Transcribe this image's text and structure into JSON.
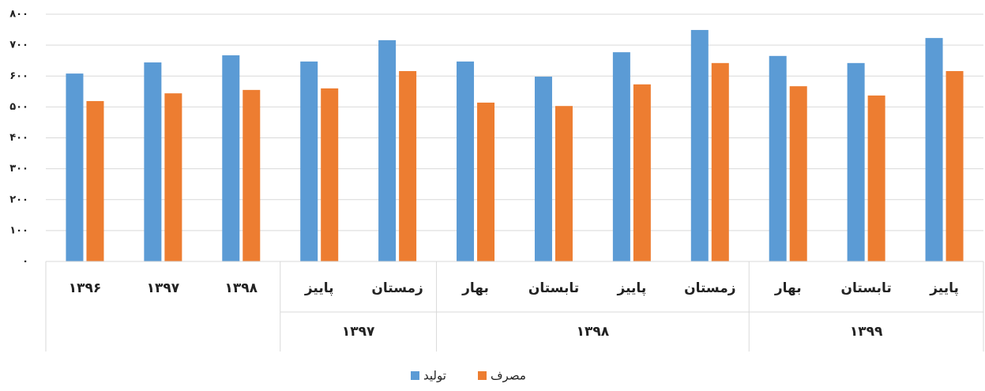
{
  "chart_data": {
    "type": "bar",
    "categories": [
      "۱۳۹۶",
      "۱۳۹۷",
      "۱۳۹۸",
      "پاییز",
      "زمستان",
      "بهار",
      "تابستان",
      "پاییز",
      "زمستان",
      "بهار",
      "تابستان",
      "پاییز"
    ],
    "category_groups": [
      null,
      null,
      null,
      "۱۳۹۷",
      "۱۳۹۷",
      "۱۳۹۸",
      "۱۳۹۸",
      "۱۳۹۸",
      "۱۳۹۸",
      "۱۳۹۹",
      "۱۳۹۹",
      "۱۳۹۹"
    ],
    "series": [
      {
        "name": "تولید",
        "color": "#5b9bd5",
        "values": [
          608,
          644,
          667,
          647,
          716,
          647,
          598,
          677,
          749,
          665,
          642,
          723
        ]
      },
      {
        "name": "مصرف",
        "color": "#ed7d31",
        "values": [
          519,
          544,
          555,
          560,
          616,
          514,
          503,
          573,
          642,
          567,
          537,
          616
        ]
      }
    ],
    "ylim": [
      0,
      800
    ],
    "yticks": [
      {
        "value": 0,
        "label": "۰"
      },
      {
        "value": 100,
        "label": "۱۰۰"
      },
      {
        "value": 200,
        "label": "۲۰۰"
      },
      {
        "value": 300,
        "label": "۳۰۰"
      },
      {
        "value": 400,
        "label": "۴۰۰"
      },
      {
        "value": 500,
        "label": "۵۰۰"
      },
      {
        "value": 600,
        "label": "۶۰۰"
      },
      {
        "value": 700,
        "label": "۷۰۰"
      },
      {
        "value": 800,
        "label": "۸۰۰"
      }
    ],
    "grid": true,
    "legend": "bottom"
  }
}
